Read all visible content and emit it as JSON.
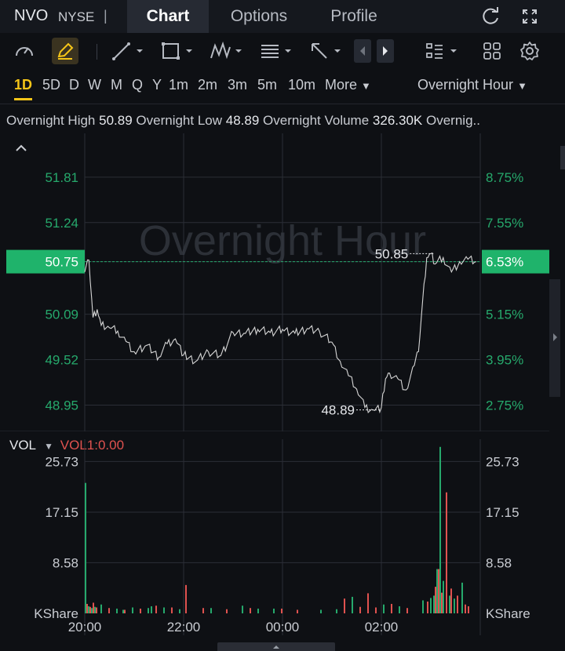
{
  "header": {
    "symbol": "NVO",
    "exchange": "NYSE",
    "separator": "|",
    "tabs": [
      {
        "label": "Chart",
        "active": true
      },
      {
        "label": "Options",
        "active": false
      },
      {
        "label": "Profile",
        "active": false
      }
    ],
    "icons": [
      "refresh-icon",
      "fullscreen-icon"
    ]
  },
  "toolbar": {
    "icons": [
      "gauge-icon",
      "pen-icon",
      "trendline-icon",
      "rectangle-icon",
      "pattern-icon",
      "fib-icon",
      "arrow-icon",
      "scroll-left-icon",
      "scroll-right-icon",
      "indicators-icon",
      "layout-icon",
      "gear-icon"
    ]
  },
  "timeframes": {
    "items": [
      "1D",
      "5D",
      "D",
      "W",
      "M",
      "Q",
      "Y",
      "1m",
      "2m",
      "3m",
      "5m",
      "10m"
    ],
    "active": "1D",
    "more_label": "More",
    "session_label": "Overnight Hour"
  },
  "info": {
    "high_label": "Overnight High",
    "high_value": "50.89",
    "low_label": "Overnight Low",
    "low_value": "48.89",
    "volume_label": "Overnight Volume",
    "volume_value": "326.30K",
    "truncated_label": "Overnig.."
  },
  "volume_header": {
    "label": "VOL",
    "indicator": "VOL1:0.00"
  },
  "colors": {
    "up": "#26a96c",
    "down": "#e0524f",
    "line": "#d6d6d6",
    "accent": "#f5c518",
    "grid": "#2b2e36"
  },
  "chart_data": [
    {
      "type": "line",
      "watermark": "Overnight Hour",
      "x_ticks": [
        "20:00",
        "22:00",
        "00:00",
        "02:00"
      ],
      "x_range": [
        "20:00",
        "03:55"
      ],
      "price_ticks": [
        51.81,
        51.24,
        50.75,
        50.09,
        49.52,
        48.95
      ],
      "percent_ticks": [
        "8.75%",
        "7.55%",
        "6.53%",
        "5.15%",
        "3.95%",
        "2.75%"
      ],
      "ylim": [
        48.62,
        52.36
      ],
      "current_price": "50.75",
      "current_percent": "6.53%",
      "annotations": [
        {
          "text": "50.85",
          "x": "03:05",
          "y": 50.85
        },
        {
          "text": "48.89",
          "x": "02:00",
          "y": 48.89
        }
      ],
      "grid": true,
      "x": [
        "20:00",
        "20:05",
        "20:10",
        "20:15",
        "20:20",
        "20:30",
        "20:40",
        "20:50",
        "21:00",
        "21:15",
        "21:30",
        "21:40",
        "21:50",
        "22:00",
        "22:15",
        "22:30",
        "22:45",
        "23:00",
        "23:15",
        "23:30",
        "23:45",
        "00:00",
        "00:15",
        "00:30",
        "00:45",
        "01:00",
        "01:10",
        "01:20",
        "01:30",
        "01:40",
        "01:50",
        "02:00",
        "02:05",
        "02:10",
        "02:20",
        "02:30",
        "02:40",
        "02:45",
        "02:50",
        "02:55",
        "03:00",
        "03:05",
        "03:15",
        "03:25",
        "03:35",
        "03:45",
        "03:55"
      ],
      "values": [
        50.62,
        50.77,
        50.05,
        50.15,
        49.95,
        49.92,
        49.88,
        49.75,
        49.62,
        49.7,
        49.55,
        49.72,
        49.78,
        49.58,
        49.5,
        49.62,
        49.57,
        49.86,
        49.85,
        49.9,
        49.86,
        49.9,
        49.85,
        49.91,
        49.87,
        49.74,
        49.5,
        49.32,
        49.15,
        48.92,
        48.89,
        48.92,
        49.28,
        49.35,
        49.28,
        49.14,
        49.45,
        49.62,
        50.25,
        50.8,
        50.85,
        50.72,
        50.8,
        50.62,
        50.75,
        50.78,
        50.75
      ]
    },
    {
      "type": "bar",
      "title": "VOL",
      "unit": "KShare",
      "y_ticks": [
        25.73,
        17.15,
        8.58
      ],
      "ylim": [
        0,
        29.5
      ],
      "x_ticks": [
        "20:00",
        "22:00",
        "00:00",
        "02:00"
      ],
      "series": [
        {
          "direction": "up",
          "values": [
            [
              0,
              22.1
            ],
            [
              4,
              1.2
            ],
            [
              8,
              0.9
            ],
            [
              12,
              1.1
            ],
            [
              20,
              1.5
            ],
            [
              40,
              0.8
            ],
            [
              48,
              0.6
            ],
            [
              60,
              1.0
            ],
            [
              80,
              0.9
            ],
            [
              84,
              1.2
            ],
            [
              100,
              1.0
            ],
            [
              120,
              0.7
            ],
            [
              160,
              0.9
            ],
            [
              200,
              1.3
            ],
            [
              220,
              0.8
            ],
            [
              240,
              0.8
            ],
            [
              300,
              0.6
            ],
            [
              320,
              0.7
            ],
            [
              340,
              2.8
            ],
            [
              380,
              1.5
            ],
            [
              400,
              1.2
            ],
            [
              430,
              2.2
            ],
            [
              440,
              2.6
            ],
            [
              444,
              3.0
            ],
            [
              448,
              7.5
            ],
            [
              452,
              28.2
            ],
            [
              456,
              5.5
            ],
            [
              464,
              3.0
            ],
            [
              470,
              2.5
            ],
            [
              480,
              5.2
            ]
          ]
        },
        {
          "direction": "down",
          "values": [
            [
              2,
              1.6
            ],
            [
              6,
              1.1
            ],
            [
              10,
              1.8
            ],
            [
              14,
              1.0
            ],
            [
              30,
              0.9
            ],
            [
              50,
              0.6
            ],
            [
              70,
              0.8
            ],
            [
              90,
              1.3
            ],
            [
              110,
              1.0
            ],
            [
              128,
              4.8
            ],
            [
              150,
              0.9
            ],
            [
              180,
              0.7
            ],
            [
              210,
              0.9
            ],
            [
              250,
              0.8
            ],
            [
              270,
              0.6
            ],
            [
              330,
              2.5
            ],
            [
              350,
              1.1
            ],
            [
              360,
              3.4
            ],
            [
              370,
              1.0
            ],
            [
              390,
              1.6
            ],
            [
              410,
              0.9
            ],
            [
              436,
              2.0
            ],
            [
              446,
              4.5
            ],
            [
              450,
              7.5
            ],
            [
              454,
              3.5
            ],
            [
              460,
              20.5
            ],
            [
              466,
              4.2
            ],
            [
              474,
              3.0
            ],
            [
              484,
              1.5
            ],
            [
              488,
              1.2
            ]
          ]
        }
      ]
    }
  ]
}
